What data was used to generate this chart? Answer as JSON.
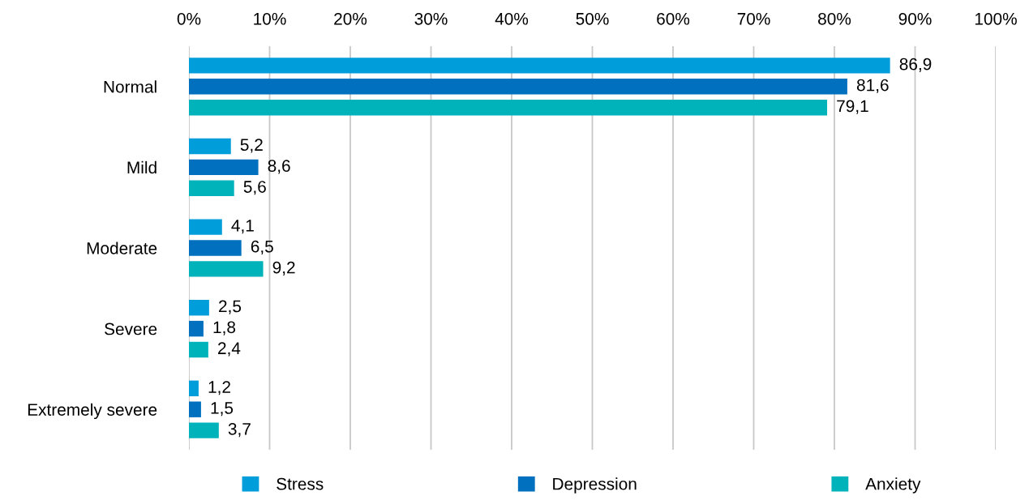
{
  "chart_data": {
    "type": "bar",
    "orientation": "horizontal",
    "categories": [
      "Normal",
      "Mild",
      "Moderate",
      "Severe",
      "Extremely severe"
    ],
    "series": [
      {
        "name": "Stress",
        "color": "#009ddb",
        "values": [
          86.9,
          5.2,
          4.1,
          2.5,
          1.2
        ],
        "value_labels": [
          "86,9",
          "5,2",
          "4,1",
          "2,5",
          "1,2"
        ]
      },
      {
        "name": "Depression",
        "color": "#0070bf",
        "values": [
          81.6,
          8.6,
          6.5,
          1.8,
          1.5
        ],
        "value_labels": [
          "81,6",
          "8,6",
          "6,5",
          "1,8",
          "1,5"
        ]
      },
      {
        "name": "Anxiety",
        "color": "#00b3bb",
        "values": [
          79.1,
          5.6,
          9.2,
          2.4,
          3.7
        ],
        "value_labels": [
          "79,1",
          "5,6",
          "9,2",
          "2,4",
          "3,7"
        ]
      }
    ],
    "xlim": [
      0,
      100
    ],
    "xticks": [
      {
        "value": 0,
        "label": "0%"
      },
      {
        "value": 10,
        "label": "10%"
      },
      {
        "value": 20,
        "label": "20%"
      },
      {
        "value": 30,
        "label": "30%"
      },
      {
        "value": 40,
        "label": "40%"
      },
      {
        "value": 50,
        "label": "50%"
      },
      {
        "value": 60,
        "label": "60%"
      },
      {
        "value": 70,
        "label": "70%"
      },
      {
        "value": 80,
        "label": "80%"
      },
      {
        "value": 90,
        "label": "90%"
      },
      {
        "value": 100,
        "label": "100%"
      }
    ],
    "grid": "x",
    "legend": "bottom"
  }
}
